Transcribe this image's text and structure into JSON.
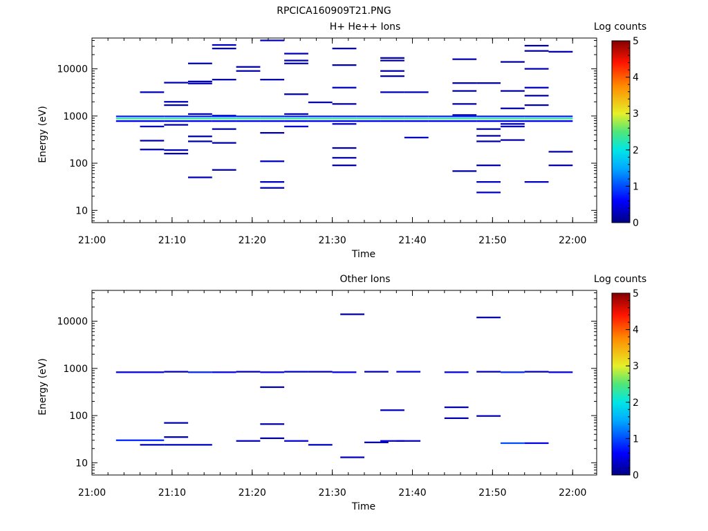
{
  "page_title": "RPCICA160909T21.PNG",
  "colorbar_ticks": [
    "0",
    "1",
    "2",
    "3",
    "4",
    "5"
  ],
  "chart_data": [
    {
      "type": "heatmap",
      "title": "H+ He++ Ions",
      "xlabel": "Time",
      "ylabel": "Energy (eV)",
      "colorbar_label": "Log counts",
      "color_range": [
        0,
        5
      ],
      "x_ticks": [
        "21:00",
        "21:10",
        "21:20",
        "21:30",
        "21:40",
        "21:50",
        "22:00"
      ],
      "y_ticks": [
        "10",
        "100",
        "1000",
        "10000"
      ],
      "xlim": [
        "21:00",
        "22:03"
      ],
      "ylim": [
        5.5,
        45000
      ],
      "y_scale": "log",
      "grid": false,
      "colorbar_position": "right",
      "cells": [
        [
          "21:03",
          "21:06",
          980,
          0.8
        ],
        [
          "21:03",
          "21:06",
          880,
          2.3
        ],
        [
          "21:03",
          "21:06",
          780,
          0.5
        ],
        [
          "21:06",
          "21:09",
          3200,
          0.3
        ],
        [
          "21:06",
          "21:09",
          980,
          0.8
        ],
        [
          "21:06",
          "21:09",
          880,
          2.3
        ],
        [
          "21:06",
          "21:09",
          780,
          0.5
        ],
        [
          "21:06",
          "21:09",
          600,
          0.3
        ],
        [
          "21:06",
          "21:09",
          300,
          0.2
        ],
        [
          "21:06",
          "21:09",
          195,
          0.3
        ],
        [
          "21:09",
          "21:12",
          5100,
          0.3
        ],
        [
          "21:09",
          "21:12",
          2000,
          0.3
        ],
        [
          "21:09",
          "21:12",
          1700,
          0.2
        ],
        [
          "21:09",
          "21:12",
          980,
          0.8
        ],
        [
          "21:09",
          "21:12",
          880,
          2.3
        ],
        [
          "21:09",
          "21:12",
          780,
          0.5
        ],
        [
          "21:09",
          "21:12",
          650,
          0.2
        ],
        [
          "21:09",
          "21:12",
          190,
          0.3
        ],
        [
          "21:09",
          "21:12",
          160,
          0.2
        ],
        [
          "21:12",
          "21:15",
          13000,
          0.3
        ],
        [
          "21:12",
          "21:15",
          5400,
          0.3
        ],
        [
          "21:12",
          "21:15",
          4900,
          0.2
        ],
        [
          "21:12",
          "21:15",
          1100,
          0.2
        ],
        [
          "21:12",
          "21:15",
          980,
          0.8
        ],
        [
          "21:12",
          "21:15",
          880,
          2.3
        ],
        [
          "21:12",
          "21:15",
          780,
          0.5
        ],
        [
          "21:12",
          "21:15",
          370,
          0.2
        ],
        [
          "21:12",
          "21:15",
          290,
          0.2
        ],
        [
          "21:12",
          "21:15",
          50,
          0.3
        ],
        [
          "21:15",
          "21:18",
          32000,
          0.3
        ],
        [
          "21:15",
          "21:18",
          27000,
          0.3
        ],
        [
          "21:15",
          "21:18",
          5900,
          0.2
        ],
        [
          "21:15",
          "21:18",
          1020,
          0.2
        ],
        [
          "21:15",
          "21:18",
          980,
          0.8
        ],
        [
          "21:15",
          "21:18",
          880,
          2.3
        ],
        [
          "21:15",
          "21:18",
          780,
          0.5
        ],
        [
          "21:15",
          "21:18",
          530,
          0.2
        ],
        [
          "21:15",
          "21:18",
          270,
          0.2
        ],
        [
          "21:15",
          "21:18",
          72,
          0.2
        ],
        [
          "21:18",
          "21:21",
          11000,
          0.2
        ],
        [
          "21:18",
          "21:21",
          9000,
          0.2
        ],
        [
          "21:18",
          "21:21",
          980,
          0.8
        ],
        [
          "21:18",
          "21:21",
          880,
          2.3
        ],
        [
          "21:18",
          "21:21",
          780,
          0.5
        ],
        [
          "21:21",
          "21:24",
          40000,
          0.3
        ],
        [
          "21:21",
          "21:24",
          5900,
          0.2
        ],
        [
          "21:21",
          "21:24",
          980,
          0.8
        ],
        [
          "21:21",
          "21:24",
          880,
          2.3
        ],
        [
          "21:21",
          "21:24",
          780,
          0.5
        ],
        [
          "21:21",
          "21:24",
          440,
          0.2
        ],
        [
          "21:21",
          "21:24",
          110,
          0.3
        ],
        [
          "21:21",
          "21:24",
          40,
          0.3
        ],
        [
          "21:21",
          "21:24",
          30,
          0.3
        ],
        [
          "21:24",
          "21:27",
          21000,
          0.3
        ],
        [
          "21:24",
          "21:27",
          15000,
          0.2
        ],
        [
          "21:24",
          "21:27",
          13000,
          0.3
        ],
        [
          "21:24",
          "21:27",
          2900,
          0.2
        ],
        [
          "21:24",
          "21:27",
          1100,
          0.2
        ],
        [
          "21:24",
          "21:27",
          980,
          0.8
        ],
        [
          "21:24",
          "21:27",
          880,
          2.3
        ],
        [
          "21:24",
          "21:27",
          780,
          0.5
        ],
        [
          "21:24",
          "21:27",
          600,
          0.4
        ],
        [
          "21:27",
          "21:30",
          1950,
          0.4
        ],
        [
          "21:27",
          "21:30",
          980,
          0.8
        ],
        [
          "21:27",
          "21:30",
          880,
          2.3
        ],
        [
          "21:27",
          "21:30",
          780,
          0.5
        ],
        [
          "21:30",
          "21:33",
          27000,
          0.3
        ],
        [
          "21:30",
          "21:33",
          12000,
          0.2
        ],
        [
          "21:30",
          "21:33",
          4000,
          0.3
        ],
        [
          "21:30",
          "21:33",
          1800,
          0.2
        ],
        [
          "21:30",
          "21:33",
          980,
          0.8
        ],
        [
          "21:30",
          "21:33",
          880,
          2.3
        ],
        [
          "21:30",
          "21:33",
          780,
          0.5
        ],
        [
          "21:30",
          "21:33",
          680,
          0.3
        ],
        [
          "21:30",
          "21:33",
          210,
          0.2
        ],
        [
          "21:30",
          "21:33",
          130,
          0.3
        ],
        [
          "21:30",
          "21:33",
          90,
          0.2
        ],
        [
          "21:33",
          "21:36",
          980,
          0.8
        ],
        [
          "21:33",
          "21:36",
          880,
          2.3
        ],
        [
          "21:33",
          "21:36",
          780,
          0.5
        ],
        [
          "21:36",
          "21:39",
          17000,
          0.2
        ],
        [
          "21:36",
          "21:39",
          15000,
          0.2
        ],
        [
          "21:36",
          "21:39",
          9000,
          0.2
        ],
        [
          "21:36",
          "21:39",
          7000,
          0.2
        ],
        [
          "21:36",
          "21:39",
          3200,
          0.3
        ],
        [
          "21:36",
          "21:39",
          980,
          0.8
        ],
        [
          "21:36",
          "21:39",
          880,
          2.3
        ],
        [
          "21:36",
          "21:39",
          780,
          0.5
        ],
        [
          "21:39",
          "21:42",
          3200,
          0.3
        ],
        [
          "21:39",
          "21:42",
          980,
          0.8
        ],
        [
          "21:39",
          "21:42",
          880,
          2.3
        ],
        [
          "21:39",
          "21:42",
          780,
          0.5
        ],
        [
          "21:39",
          "21:42",
          350,
          0.3
        ],
        [
          "21:42",
          "21:45",
          980,
          0.8
        ],
        [
          "21:42",
          "21:45",
          880,
          2.3
        ],
        [
          "21:42",
          "21:45",
          780,
          0.5
        ],
        [
          "21:45",
          "21:48",
          16000,
          0.3
        ],
        [
          "21:45",
          "21:48",
          5000,
          0.3
        ],
        [
          "21:45",
          "21:48",
          3400,
          0.2
        ],
        [
          "21:45",
          "21:48",
          1800,
          0.2
        ],
        [
          "21:45",
          "21:48",
          1050,
          0.2
        ],
        [
          "21:45",
          "21:48",
          980,
          0.8
        ],
        [
          "21:45",
          "21:48",
          880,
          2.3
        ],
        [
          "21:45",
          "21:48",
          780,
          0.5
        ],
        [
          "21:45",
          "21:48",
          68,
          0.2
        ],
        [
          "21:48",
          "21:51",
          5000,
          0.3
        ],
        [
          "21:48",
          "21:51",
          980,
          0.8
        ],
        [
          "21:48",
          "21:51",
          880,
          2.3
        ],
        [
          "21:48",
          "21:51",
          780,
          0.5
        ],
        [
          "21:48",
          "21:51",
          530,
          0.2
        ],
        [
          "21:48",
          "21:51",
          380,
          0.2
        ],
        [
          "21:48",
          "21:51",
          290,
          0.2
        ],
        [
          "21:48",
          "21:51",
          90,
          0.2
        ],
        [
          "21:48",
          "21:51",
          40,
          0.3
        ],
        [
          "21:48",
          "21:51",
          24,
          0.4
        ],
        [
          "21:51",
          "21:54",
          14000,
          0.2
        ],
        [
          "21:51",
          "21:54",
          3400,
          0.2
        ],
        [
          "21:51",
          "21:54",
          1450,
          0.2
        ],
        [
          "21:51",
          "21:54",
          980,
          0.8
        ],
        [
          "21:51",
          "21:54",
          880,
          2.3
        ],
        [
          "21:51",
          "21:54",
          780,
          0.5
        ],
        [
          "21:51",
          "21:54",
          680,
          0.2
        ],
        [
          "21:51",
          "21:54",
          600,
          0.3
        ],
        [
          "21:51",
          "21:54",
          310,
          0.2
        ],
        [
          "21:54",
          "21:57",
          31000,
          0.2
        ],
        [
          "21:54",
          "21:57",
          24000,
          0.2
        ],
        [
          "21:54",
          "21:57",
          10000,
          0.3
        ],
        [
          "21:54",
          "21:57",
          4000,
          0.3
        ],
        [
          "21:54",
          "21:57",
          2700,
          0.2
        ],
        [
          "21:54",
          "21:57",
          1700,
          0.2
        ],
        [
          "21:54",
          "21:57",
          980,
          0.8
        ],
        [
          "21:54",
          "21:57",
          880,
          2.3
        ],
        [
          "21:54",
          "21:57",
          780,
          0.5
        ],
        [
          "21:54",
          "21:57",
          40,
          0.3
        ],
        [
          "21:57",
          "22:00",
          23000,
          0.2
        ],
        [
          "21:57",
          "22:00",
          980,
          0.8
        ],
        [
          "21:57",
          "22:00",
          880,
          2.3
        ],
        [
          "21:57",
          "22:00",
          780,
          0.5
        ],
        [
          "21:57",
          "22:00",
          175,
          0.2
        ],
        [
          "21:57",
          "22:00",
          90,
          0.2
        ]
      ]
    },
    {
      "type": "heatmap",
      "title": "Other Ions",
      "xlabel": "Time",
      "ylabel": "Energy (eV)",
      "colorbar_label": "Log counts",
      "color_range": [
        0,
        5
      ],
      "x_ticks": [
        "21:00",
        "21:10",
        "21:20",
        "21:30",
        "21:40",
        "21:50",
        "22:00"
      ],
      "y_ticks": [
        "10",
        "100",
        "1000",
        "10000"
      ],
      "xlim": [
        "21:00",
        "22:03"
      ],
      "ylim": [
        5.5,
        45000
      ],
      "y_scale": "log",
      "grid": false,
      "colorbar_position": "right",
      "cells": [
        [
          "21:03",
          "21:06",
          830,
          0.5
        ],
        [
          "21:03",
          "21:06",
          30,
          0.8
        ],
        [
          "21:06",
          "21:09",
          830,
          0.5
        ],
        [
          "21:06",
          "21:09",
          30,
          0.8
        ],
        [
          "21:06",
          "21:09",
          24,
          0.3
        ],
        [
          "21:09",
          "21:12",
          850,
          0.3
        ],
        [
          "21:09",
          "21:12",
          70,
          0.3
        ],
        [
          "21:09",
          "21:12",
          35,
          0.3
        ],
        [
          "21:09",
          "21:12",
          24,
          0.3
        ],
        [
          "21:12",
          "21:15",
          830,
          0.8
        ],
        [
          "21:12",
          "21:15",
          24,
          0.3
        ],
        [
          "21:15",
          "21:18",
          830,
          0.6
        ],
        [
          "21:18",
          "21:21",
          850,
          0.3
        ],
        [
          "21:18",
          "21:21",
          29,
          0.4
        ],
        [
          "21:21",
          "21:24",
          830,
          0.5
        ],
        [
          "21:21",
          "21:24",
          400,
          0.2
        ],
        [
          "21:21",
          "21:24",
          66,
          0.2
        ],
        [
          "21:21",
          "21:24",
          33,
          0.3
        ],
        [
          "21:24",
          "21:27",
          850,
          0.4
        ],
        [
          "21:24",
          "21:27",
          29,
          0.6
        ],
        [
          "21:27",
          "21:30",
          850,
          0.3
        ],
        [
          "21:27",
          "21:30",
          24,
          0.3
        ],
        [
          "21:30",
          "21:33",
          830,
          0.6
        ],
        [
          "21:31",
          "21:34",
          14000,
          0.2
        ],
        [
          "21:31",
          "21:34",
          13,
          0.3
        ],
        [
          "21:34",
          "21:37",
          850,
          0.3
        ],
        [
          "21:34",
          "21:37",
          27,
          0.4
        ],
        [
          "21:36",
          "21:39",
          130,
          0.3
        ],
        [
          "21:36",
          "21:39",
          29,
          0.4
        ],
        [
          "21:38",
          "21:41",
          850,
          0.5
        ],
        [
          "21:38",
          "21:41",
          29,
          0.4
        ],
        [
          "21:44",
          "21:47",
          830,
          0.5
        ],
        [
          "21:44",
          "21:47",
          150,
          0.2
        ],
        [
          "21:44",
          "21:47",
          88,
          0.2
        ],
        [
          "21:48",
          "21:51",
          850,
          0.3
        ],
        [
          "21:48",
          "21:51",
          12000,
          0.2
        ],
        [
          "21:48",
          "21:51",
          98,
          0.3
        ],
        [
          "21:51",
          "21:54",
          830,
          0.8
        ],
        [
          "21:51",
          "21:54",
          26,
          1.0
        ],
        [
          "21:54",
          "21:57",
          850,
          0.3
        ],
        [
          "21:54",
          "21:57",
          26,
          0.5
        ],
        [
          "21:57",
          "22:00",
          830,
          0.5
        ]
      ]
    }
  ]
}
